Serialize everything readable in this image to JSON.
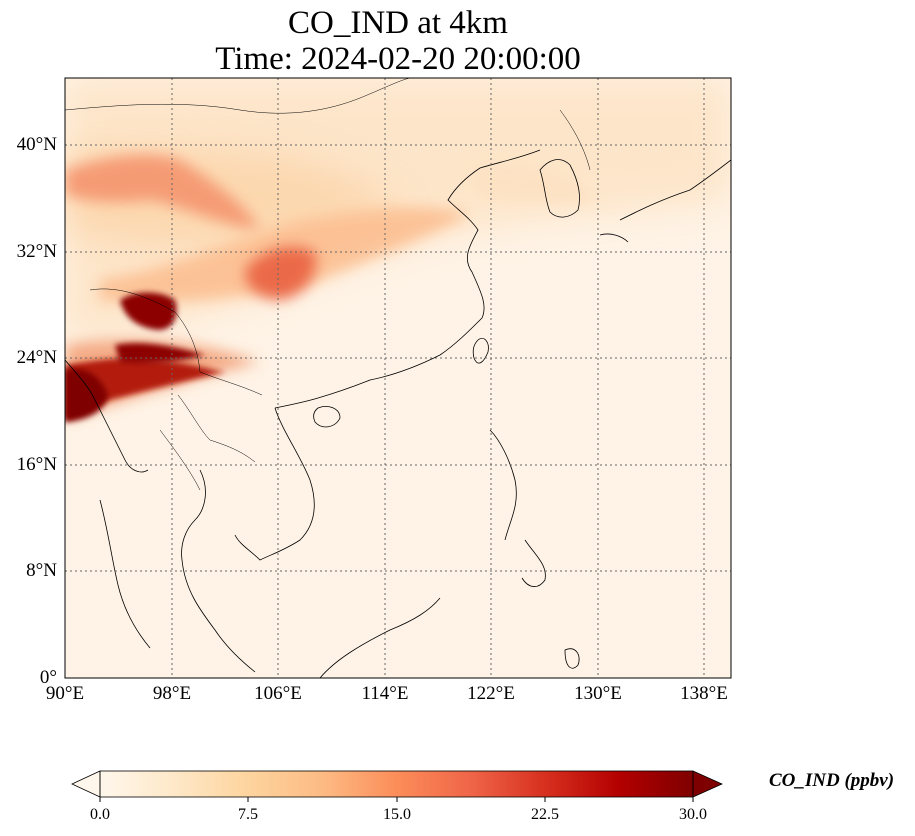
{
  "title": {
    "line1": "CO_IND at 4km",
    "line2": "Time: 2024-02-20 20:00:00"
  },
  "map": {
    "lon_range": [
      90,
      140
    ],
    "lat_range": [
      0,
      45
    ],
    "lon_ticks": [
      "90°E",
      "98°E",
      "106°E",
      "114°E",
      "122°E",
      "130°E",
      "138°E"
    ],
    "lat_ticks": [
      "0°",
      "8°N",
      "16°N",
      "24°N",
      "32°N",
      "40°N"
    ],
    "gridlines": true,
    "colormap": "OrRd"
  },
  "colorbar": {
    "label": "CO_IND (ppbv)",
    "min": 0.0,
    "max": 30.0,
    "ticks": [
      "0.0",
      "7.5",
      "15.0",
      "22.5",
      "30.0"
    ],
    "extend": "both",
    "colors": [
      "#fff7ec",
      "#fee8c8",
      "#fdd49e",
      "#fdbb84",
      "#fc8d59",
      "#ef6548",
      "#d7301f",
      "#b30000",
      "#7f0000"
    ]
  }
}
